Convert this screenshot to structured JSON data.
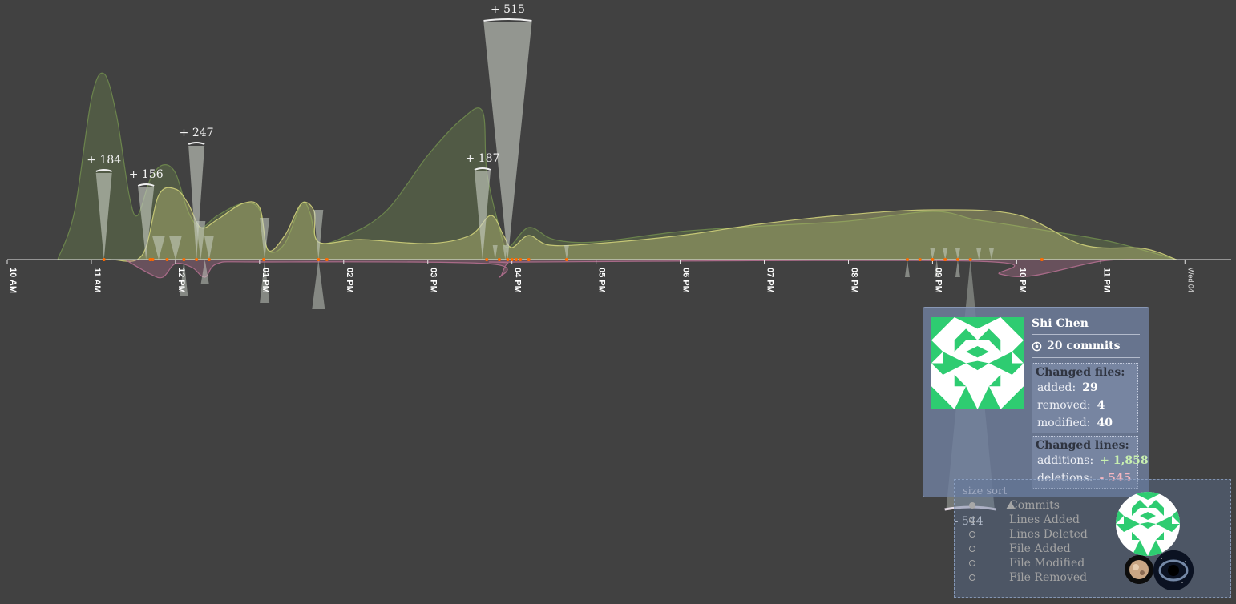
{
  "chart_data": {
    "type": "area",
    "title": "",
    "xlabel": "",
    "ylabel": "",
    "x_ticks": [
      "10 AM",
      "11 AM",
      "12 PM",
      "01 PM",
      "02 PM",
      "03 PM",
      "04 PM",
      "05 PM",
      "06 PM",
      "07 PM",
      "08 PM",
      "09 PM",
      "10 PM",
      "11 PM",
      "Wed 04"
    ],
    "x_range_hours": [
      10.0,
      24.55
    ],
    "grid": false,
    "legend": "none",
    "series": [
      {
        "color": "#6f8a4e",
        "points": [
          [
            10.6,
            0
          ],
          [
            10.8,
            60
          ],
          [
            11.0,
            200
          ],
          [
            11.15,
            232
          ],
          [
            11.3,
            180
          ],
          [
            11.45,
            80
          ],
          [
            11.55,
            55
          ],
          [
            11.7,
            100
          ],
          [
            11.85,
            118
          ],
          [
            12.0,
            108
          ],
          [
            12.15,
            60
          ],
          [
            12.3,
            40
          ],
          [
            12.5,
            55
          ],
          [
            12.8,
            70
          ],
          [
            13.0,
            62
          ],
          [
            13.1,
            12
          ],
          [
            13.3,
            20
          ],
          [
            13.5,
            70
          ],
          [
            13.6,
            58
          ],
          [
            13.7,
            22
          ],
          [
            14.0,
            28
          ],
          [
            14.5,
            60
          ],
          [
            15.0,
            130
          ],
          [
            15.4,
            175
          ],
          [
            15.65,
            185
          ],
          [
            15.7,
            110
          ],
          [
            15.85,
            40
          ],
          [
            15.95,
            15
          ],
          [
            16.2,
            40
          ],
          [
            16.5,
            25
          ],
          [
            17.0,
            22
          ],
          [
            18.0,
            35
          ],
          [
            19.0,
            42
          ],
          [
            20.0,
            48
          ],
          [
            21.0,
            60
          ],
          [
            21.5,
            50
          ],
          [
            22.0,
            42
          ],
          [
            23.0,
            25
          ],
          [
            23.5,
            12
          ],
          [
            23.9,
            0
          ]
        ]
      },
      {
        "color": "#cfd07a",
        "points": [
          [
            10.6,
            0
          ],
          [
            11.2,
            0
          ],
          [
            11.6,
            5
          ],
          [
            11.8,
            80
          ],
          [
            12.0,
            88
          ],
          [
            12.15,
            70
          ],
          [
            12.3,
            40
          ],
          [
            12.5,
            50
          ],
          [
            12.8,
            70
          ],
          [
            13.0,
            65
          ],
          [
            13.1,
            12
          ],
          [
            13.3,
            30
          ],
          [
            13.5,
            70
          ],
          [
            13.65,
            60
          ],
          [
            13.7,
            22
          ],
          [
            14.2,
            25
          ],
          [
            15.0,
            20
          ],
          [
            15.5,
            30
          ],
          [
            15.75,
            55
          ],
          [
            15.9,
            30
          ],
          [
            16.0,
            15
          ],
          [
            16.2,
            30
          ],
          [
            16.45,
            18
          ],
          [
            17.0,
            20
          ],
          [
            18.0,
            30
          ],
          [
            19.0,
            45
          ],
          [
            20.0,
            56
          ],
          [
            21.0,
            62
          ],
          [
            22.0,
            56
          ],
          [
            22.8,
            18
          ],
          [
            23.5,
            14
          ],
          [
            23.9,
            0
          ]
        ]
      },
      {
        "color": "#b36f8f",
        "points": [
          [
            11.4,
            0
          ],
          [
            11.7,
            -18
          ],
          [
            11.85,
            -22
          ],
          [
            12.0,
            -5
          ],
          [
            12.2,
            -10
          ],
          [
            12.35,
            -22
          ],
          [
            12.5,
            -5
          ],
          [
            13.0,
            -3
          ],
          [
            15.7,
            -5
          ],
          [
            15.85,
            -22
          ],
          [
            15.95,
            -5
          ],
          [
            16.2,
            -3
          ],
          [
            21.5,
            -2
          ],
          [
            21.8,
            -18
          ],
          [
            22.2,
            -20
          ],
          [
            23.0,
            -2
          ],
          [
            23.5,
            0
          ]
        ]
      }
    ],
    "peaks_added": [
      {
        "x": 11.15,
        "label": "+ 184"
      },
      {
        "x": 11.65,
        "label": "+ 156"
      },
      {
        "x": 12.25,
        "label": "+ 247"
      },
      {
        "x": 15.65,
        "label": "+ 187"
      },
      {
        "x": 15.95,
        "label": "+ 515"
      }
    ],
    "peaks_deleted": [
      {
        "x": 21.45,
        "label": "- 544"
      }
    ]
  },
  "sort_panel": {
    "title": "size sort",
    "options": [
      {
        "label": "Commits",
        "checked": true
      },
      {
        "label": "Lines Added",
        "checked": false
      },
      {
        "label": "Lines Deleted",
        "checked": false
      },
      {
        "label": "File Added",
        "checked": false
      },
      {
        "label": "File Modified",
        "checked": false
      },
      {
        "label": "File Removed",
        "checked": false
      }
    ]
  },
  "tooltip": {
    "name": "Shi Chen",
    "commits": "20 commits",
    "files_title": "Changed files:",
    "files": [
      {
        "label": "added:",
        "value": "29"
      },
      {
        "label": "removed:",
        "value": "4"
      },
      {
        "label": "modified:",
        "value": "40"
      }
    ],
    "lines_title": "Changed lines:",
    "lines": [
      {
        "label": "additions:",
        "value": "+ 1,858",
        "kind": "add"
      },
      {
        "label": "deletions:",
        "value": "- 545",
        "kind": "del"
      }
    ]
  },
  "colors": {
    "identicon": "#2ecc71",
    "marker": "#ff6a00",
    "axis": "#e8e8e8",
    "spike": "#c9cfc5"
  }
}
